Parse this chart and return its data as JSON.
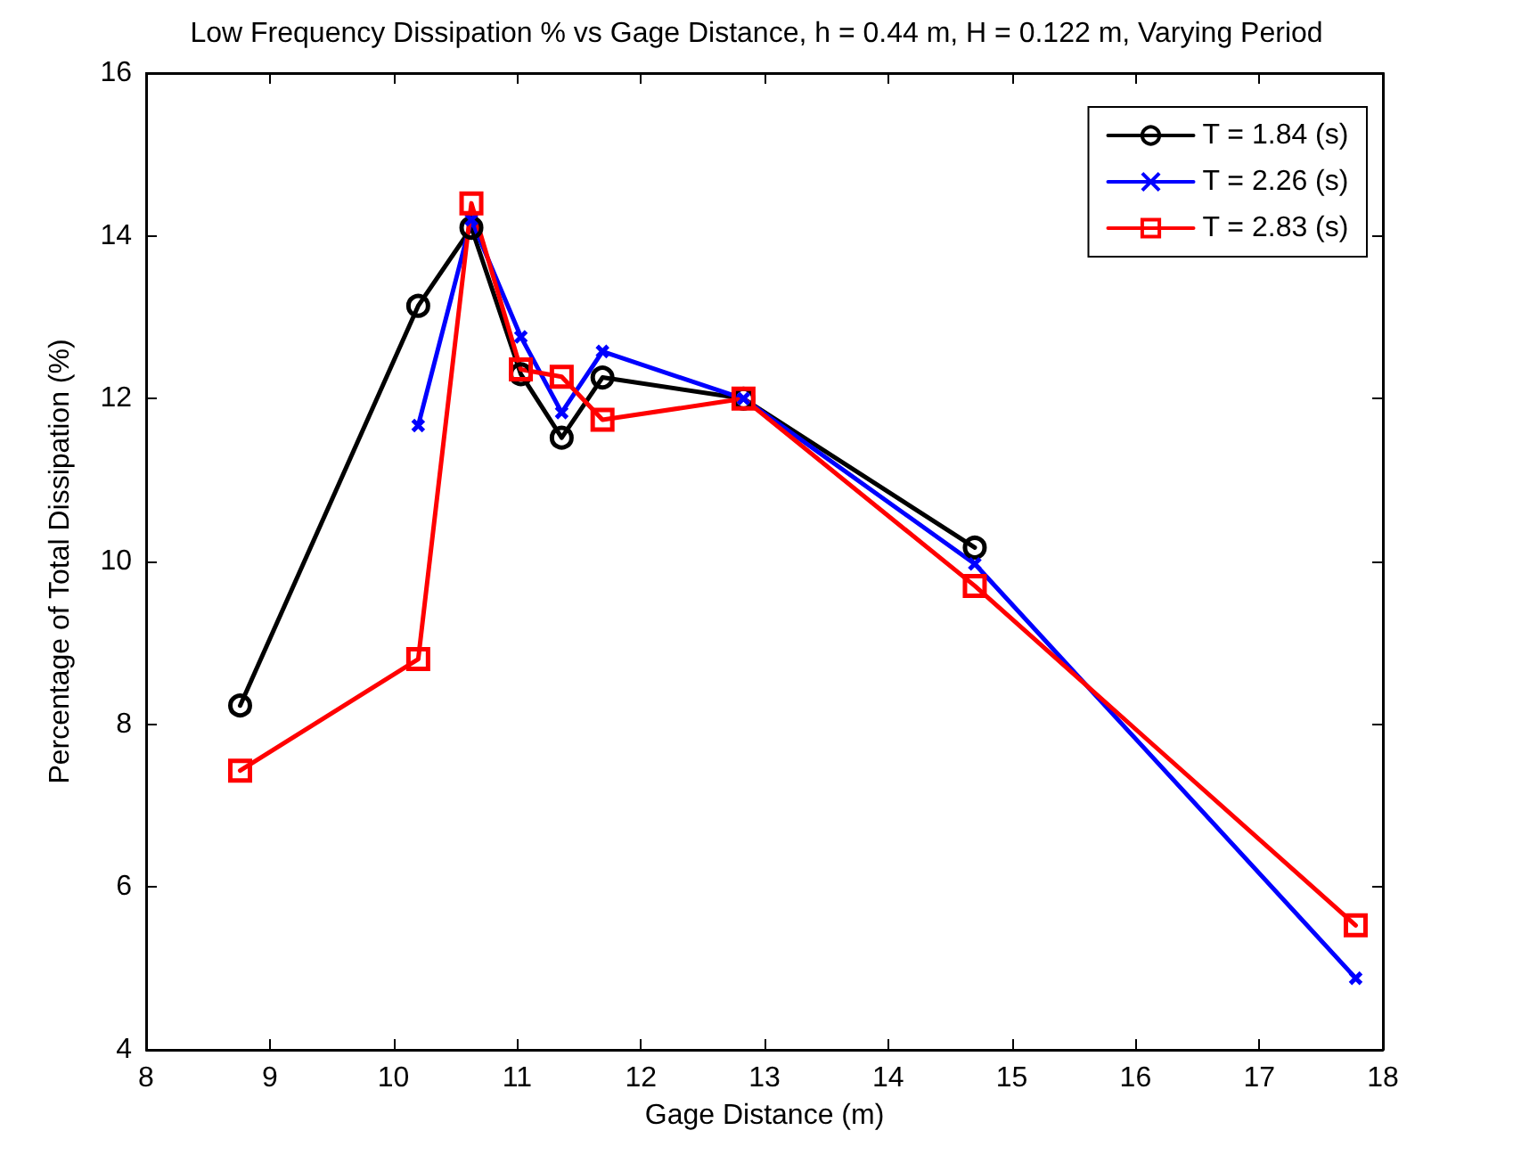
{
  "chart_data": {
    "type": "line",
    "title": "Low Frequency Dissipation % vs Gage Distance, h = 0.44 m, H = 0.122 m, Varying Period",
    "xlabel": "Gage Distance (m)",
    "ylabel": "Percentage of Total Dissipation (%)",
    "xlim": [
      8,
      18
    ],
    "xticks": [
      8,
      9,
      10,
      11,
      12,
      13,
      14,
      15,
      16,
      17,
      18
    ],
    "ylim": [
      4,
      16
    ],
    "yticks": [
      4,
      6,
      8,
      10,
      12,
      14,
      16
    ],
    "grid": false,
    "legend": "top right",
    "line_style": "solid",
    "series": [
      {
        "name": "T = 1.84 (s)",
        "color": "#000000",
        "marker": "circle",
        "x": [
          8.76,
          10.2,
          10.63,
          11.03,
          11.36,
          11.69,
          12.83,
          14.7
        ],
        "values": [
          8.23,
          13.14,
          14.1,
          12.3,
          11.52,
          12.26,
          12.0,
          10.17
        ]
      },
      {
        "name": "T = 2.26 (s)",
        "color": "#0000ff",
        "marker": "cross",
        "x": [
          10.2,
          10.63,
          11.03,
          11.36,
          11.69,
          12.83,
          14.7,
          17.78
        ],
        "values": [
          11.67,
          14.2,
          12.76,
          11.83,
          12.58,
          12.0,
          9.97,
          4.88
        ]
      },
      {
        "name": "T = 2.83 (s)",
        "color": "#ff0000",
        "marker": "square",
        "x": [
          8.76,
          10.2,
          10.63,
          11.03,
          11.36,
          11.69,
          12.83,
          14.7,
          17.78
        ],
        "values": [
          7.43,
          8.8,
          14.4,
          12.36,
          12.27,
          11.74,
          12.0,
          9.7,
          5.53
        ]
      }
    ]
  }
}
